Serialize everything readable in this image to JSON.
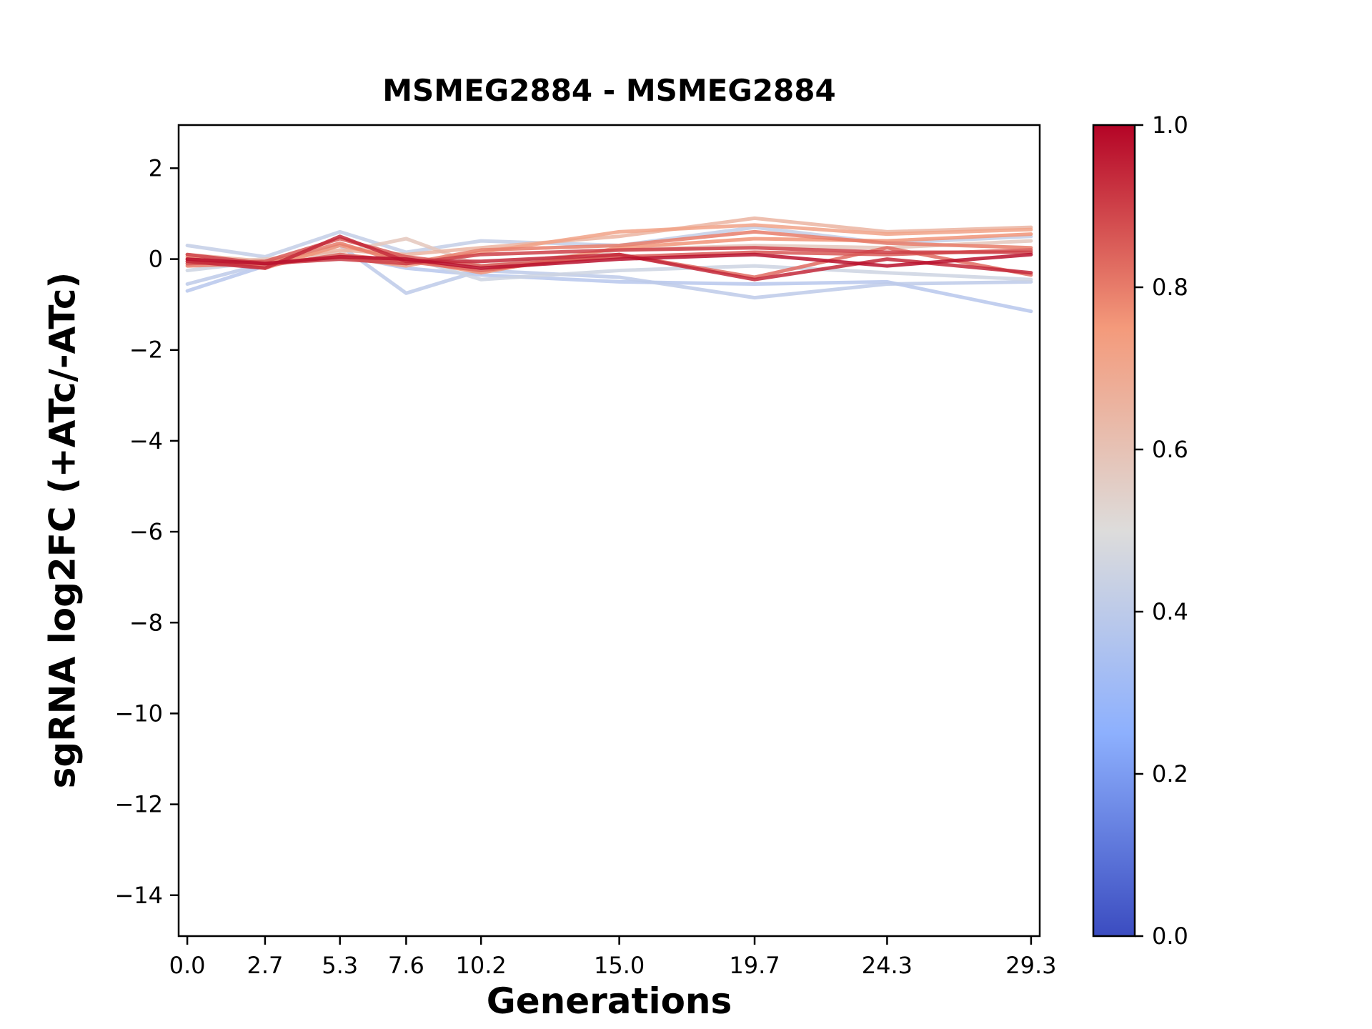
{
  "figure": {
    "title": "MSMEG2884 - MSMEG2884",
    "xlabel": "Generations",
    "ylabel": "sgRNA log2FC (+ATc/-ATc)"
  },
  "chart_data": {
    "type": "line",
    "title": "MSMEG2884 - MSMEG2884",
    "xlabel": "Generations",
    "ylabel": "sgRNA log2FC (+ATc/-ATc)",
    "grid": false,
    "legend": "none",
    "colorbar_position": "right",
    "xlim": [
      -0.3,
      29.6
    ],
    "ylim": [
      -14.9,
      2.95
    ],
    "x": [
      0.0,
      2.7,
      5.3,
      7.6,
      10.2,
      15.0,
      19.7,
      24.3,
      29.3
    ],
    "x_ticks": [
      {
        "v": 0.0,
        "label": "0.0"
      },
      {
        "v": 2.7,
        "label": "2.7"
      },
      {
        "v": 5.3,
        "label": "5.3"
      },
      {
        "v": 7.6,
        "label": "7.6"
      },
      {
        "v": 10.2,
        "label": "10.2"
      },
      {
        "v": 15.0,
        "label": "15.0"
      },
      {
        "v": 19.7,
        "label": "19.7"
      },
      {
        "v": 24.3,
        "label": "24.3"
      },
      {
        "v": 29.3,
        "label": "29.3"
      }
    ],
    "y_ticks": [
      {
        "v": 2,
        "label": "2"
      },
      {
        "v": 0,
        "label": "0"
      },
      {
        "v": -2,
        "label": "−2"
      },
      {
        "v": -4,
        "label": "−4"
      },
      {
        "v": -6,
        "label": "−6"
      },
      {
        "v": -8,
        "label": "−8"
      },
      {
        "v": -10,
        "label": "−10"
      },
      {
        "v": -12,
        "label": "−12"
      },
      {
        "v": -14,
        "label": "−14"
      }
    ],
    "series": [
      {
        "c": 0.38,
        "y": [
          -0.7,
          -0.15,
          0.1,
          -0.2,
          -0.35,
          -0.5,
          -0.55,
          -0.5,
          -1.15
        ]
      },
      {
        "c": 0.4,
        "y": [
          -0.55,
          -0.1,
          0.3,
          -0.75,
          -0.25,
          -0.4,
          -0.85,
          -0.55,
          -0.5
        ]
      },
      {
        "c": 0.42,
        "y": [
          0.3,
          0.05,
          0.6,
          0.15,
          0.4,
          0.3,
          0.7,
          0.35,
          0.5
        ]
      },
      {
        "c": 0.45,
        "y": [
          -0.25,
          -0.05,
          0.0,
          0.05,
          -0.45,
          -0.25,
          -0.15,
          -0.3,
          -0.45
        ]
      },
      {
        "c": 0.58,
        "y": [
          -0.1,
          0.0,
          0.15,
          0.45,
          -0.15,
          0.2,
          0.3,
          0.25,
          0.4
        ]
      },
      {
        "c": 0.65,
        "y": [
          0.1,
          -0.05,
          0.2,
          0.1,
          0.25,
          0.5,
          0.9,
          0.6,
          0.7
        ]
      },
      {
        "c": 0.72,
        "y": [
          -0.05,
          -0.1,
          0.05,
          -0.15,
          0.15,
          0.6,
          0.75,
          0.55,
          0.65
        ]
      },
      {
        "c": 0.76,
        "y": [
          0.05,
          -0.2,
          0.3,
          0.0,
          -0.3,
          0.25,
          0.45,
          0.4,
          0.55
        ]
      },
      {
        "c": 0.8,
        "y": [
          -0.15,
          -0.1,
          0.35,
          -0.1,
          0.2,
          0.3,
          0.6,
          0.35,
          0.25
        ]
      },
      {
        "c": 0.83,
        "y": [
          0.0,
          -0.15,
          0.1,
          -0.05,
          -0.25,
          0.1,
          -0.4,
          0.25,
          -0.35
        ]
      },
      {
        "c": 0.86,
        "y": [
          -0.1,
          -0.05,
          0.45,
          0.05,
          -0.15,
          0.05,
          0.15,
          0.1,
          0.2
        ]
      },
      {
        "c": 0.9,
        "y": [
          0.1,
          -0.1,
          0.0,
          -0.1,
          0.1,
          0.2,
          0.25,
          0.15,
          0.15
        ]
      },
      {
        "c": 0.94,
        "y": [
          -0.05,
          -0.2,
          0.5,
          -0.05,
          -0.05,
          0.1,
          -0.45,
          0.0,
          -0.3
        ]
      },
      {
        "c": 0.98,
        "y": [
          0.0,
          -0.1,
          0.05,
          0.0,
          -0.2,
          0.0,
          0.1,
          -0.15,
          0.1
        ]
      }
    ],
    "colorbar": {
      "ticks": [
        {
          "v": 1.0,
          "label": "1.0"
        },
        {
          "v": 0.8,
          "label": "0.8"
        },
        {
          "v": 0.6,
          "label": "0.6"
        },
        {
          "v": 0.4,
          "label": "0.4"
        },
        {
          "v": 0.2,
          "label": "0.2"
        },
        {
          "v": 0.0,
          "label": "0.0"
        }
      ],
      "colormap": [
        {
          "t": 0.0,
          "color": "#3b4cc0"
        },
        {
          "t": 0.25,
          "color": "#8db0fe"
        },
        {
          "t": 0.5,
          "color": "#dddcdb"
        },
        {
          "t": 0.75,
          "color": "#f49a7b"
        },
        {
          "t": 1.0,
          "color": "#b40426"
        }
      ]
    }
  }
}
